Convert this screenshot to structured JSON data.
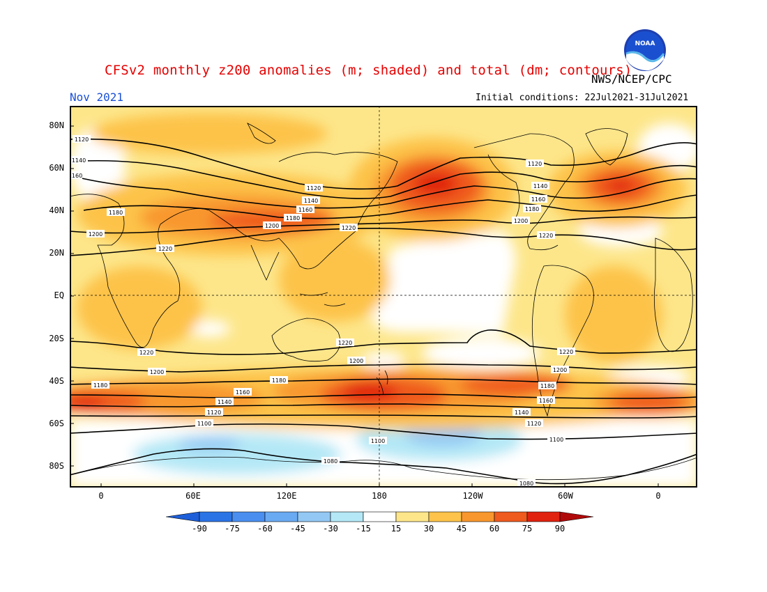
{
  "title": "CFSv2 monthly z200 anomalies (m; shaded) and total (dm; contours)",
  "agency": "NWS/NCEP/CPC",
  "logo_text": "NOAA",
  "month": "Nov 2021",
  "initial_conditions": "Initial conditions: 22Jul2021-31Jul2021",
  "lat_labels": [
    "80N",
    "60N",
    "40N",
    "20N",
    "EQ",
    "20S",
    "40S",
    "60S",
    "80S"
  ],
  "lon_labels": [
    "0",
    "60E",
    "120E",
    "180",
    "120W",
    "60W",
    "0"
  ],
  "colorbar": {
    "labels": [
      "-90",
      "-75",
      "-60",
      "-45",
      "-30",
      "-15",
      "15",
      "30",
      "45",
      "60",
      "75",
      "90"
    ],
    "colors": [
      "#1e5fd9",
      "#2b74e6",
      "#4a8ff0",
      "#6aaaf2",
      "#93c8f4",
      "#b4e8f6",
      "#ffffff",
      "#fde68a",
      "#fdc34a",
      "#f8972d",
      "#ef5a1e",
      "#e0220f",
      "#b00a0a"
    ]
  },
  "contour_labels": [
    "1120",
    "1140",
    "1160",
    "1180",
    "1200",
    "1220",
    "1100",
    "1080"
  ],
  "map_colors": {
    "land": "#000000",
    "contour": "#000000"
  }
}
